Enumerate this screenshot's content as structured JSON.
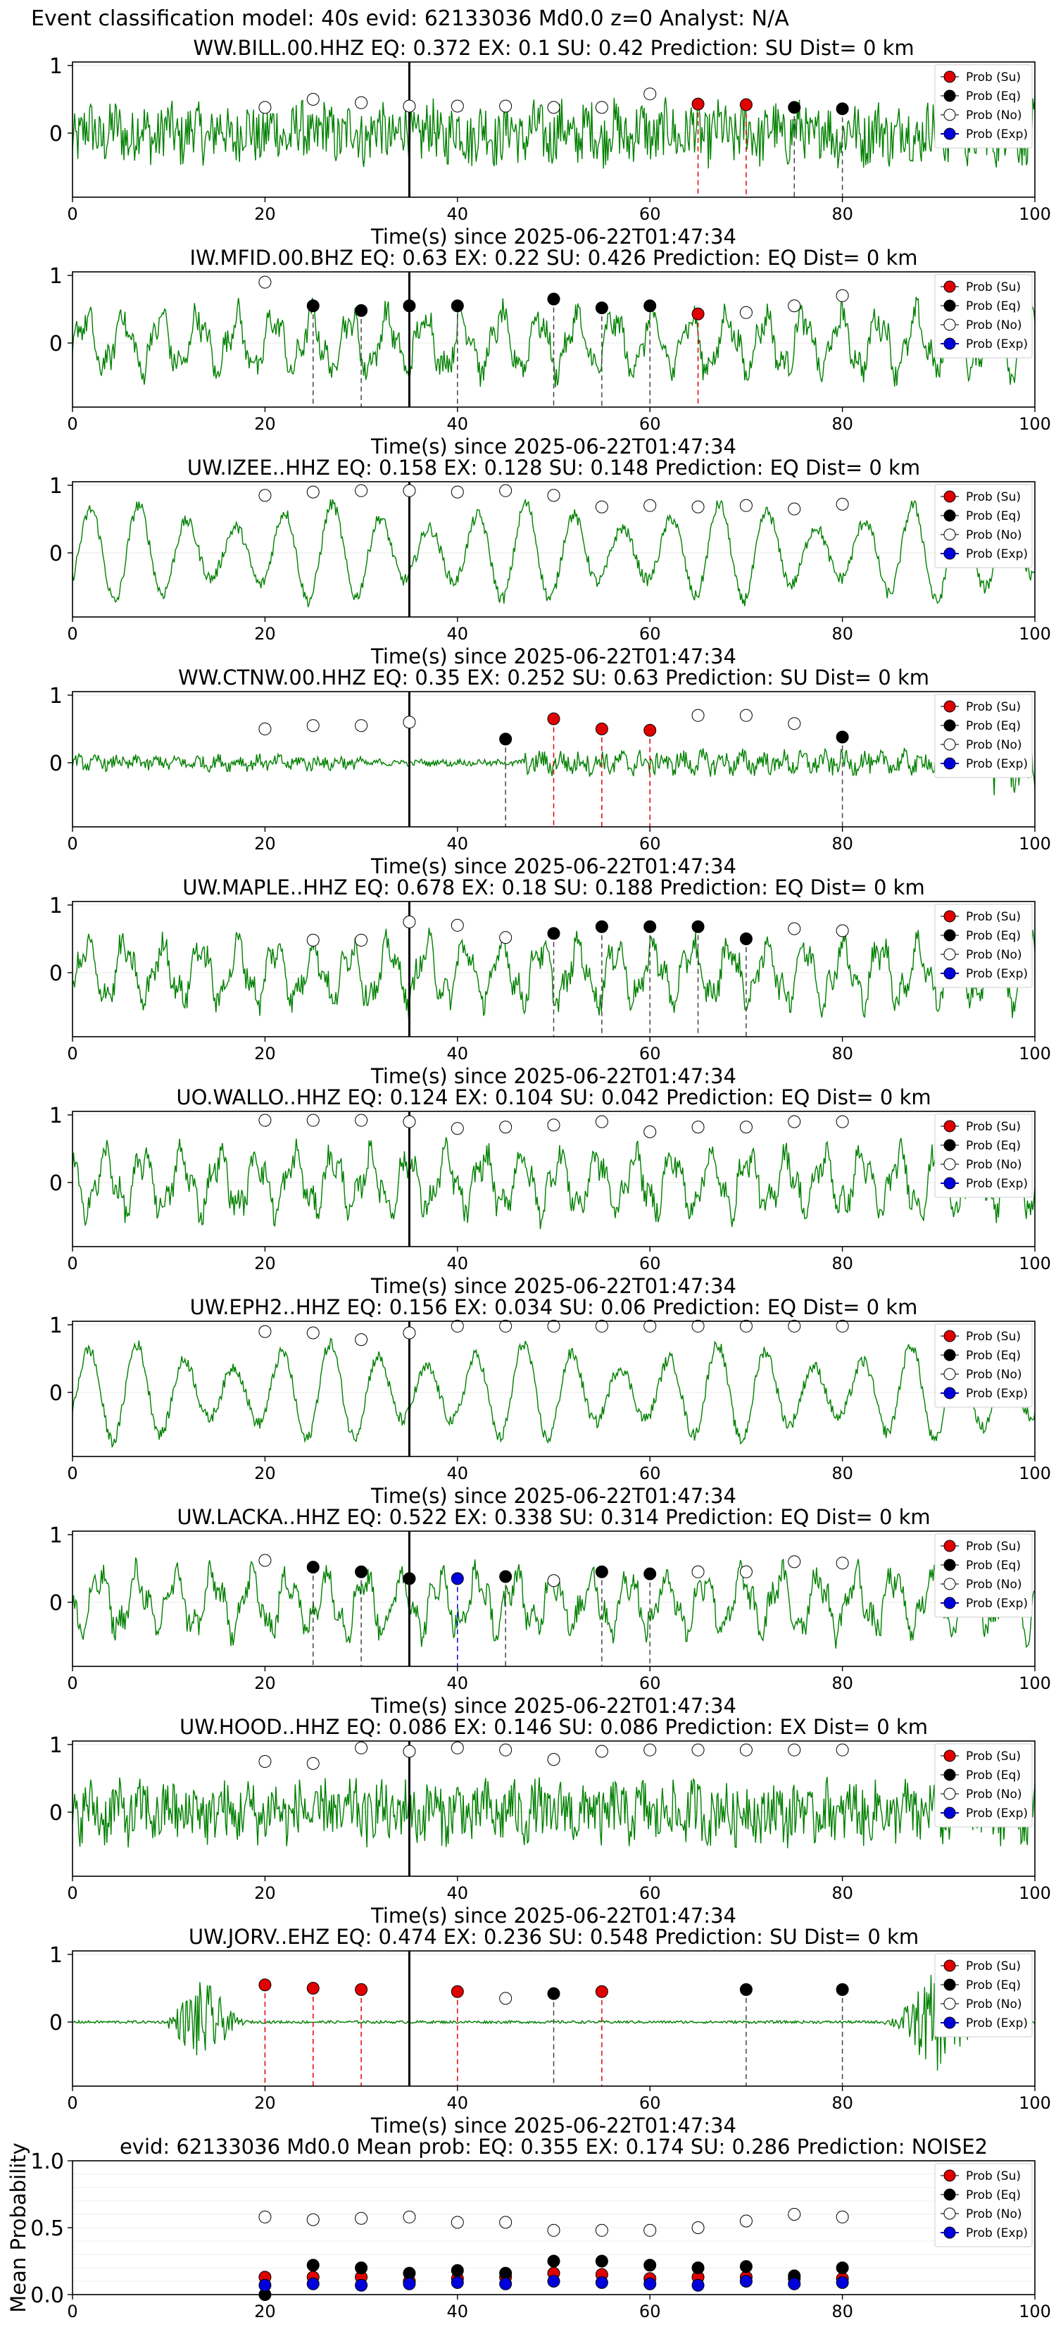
{
  "header": "Event classification model: 40s evid: 62133036 Md0.0 z=0 Analyst: N/A",
  "legend": [
    "Prob (Su)",
    "Prob (Eq)",
    "Prob (No)",
    "Prob (Exp)"
  ],
  "colors": {
    "trace": "#008000",
    "su": "#e00000",
    "eq": "#000000",
    "no": "#ffffff",
    "exp": "#0000dd"
  },
  "chart_data": [
    {
      "type": "line",
      "title": "WW.BILL.00.HHZ   EQ: 0.372  EX: 0.1  SU: 0.42   Prediction: SU    Dist= 0 km",
      "xlabel": "Time(s) since 2025-06-22T01:47:34",
      "xlim": [
        0,
        100
      ],
      "xticks": [
        0,
        20,
        40,
        60,
        80,
        100
      ],
      "yticks": [
        1,
        0
      ],
      "pick": 35,
      "amplitude_style": "noisy",
      "points": [
        {
          "x": 20,
          "y": 0.38,
          "c": "no"
        },
        {
          "x": 25,
          "y": 0.5,
          "c": "no"
        },
        {
          "x": 30,
          "y": 0.45,
          "c": "no"
        },
        {
          "x": 35,
          "y": 0.4,
          "c": "no"
        },
        {
          "x": 40,
          "y": 0.4,
          "c": "no"
        },
        {
          "x": 45,
          "y": 0.4,
          "c": "no"
        },
        {
          "x": 50,
          "y": 0.38,
          "c": "no"
        },
        {
          "x": 55,
          "y": 0.38,
          "c": "no"
        },
        {
          "x": 60,
          "y": 0.58,
          "c": "no"
        },
        {
          "x": 65,
          "y": 0.43,
          "c": "su"
        },
        {
          "x": 70,
          "y": 0.42,
          "c": "su"
        },
        {
          "x": 75,
          "y": 0.38,
          "c": "eq"
        },
        {
          "x": 80,
          "y": 0.36,
          "c": "eq"
        }
      ]
    },
    {
      "type": "line",
      "title": "IW.MFID.00.BHZ   EQ: 0.63  EX: 0.22  SU: 0.426   Prediction: EQ    Dist= 0 km",
      "xlabel": "Time(s) since 2025-06-22T01:47:34",
      "xlim": [
        0,
        100
      ],
      "xticks": [
        0,
        20,
        40,
        60,
        80,
        100
      ],
      "yticks": [
        1,
        0
      ],
      "pick": 35,
      "amplitude_style": "wavy",
      "points": [
        {
          "x": 20,
          "y": 0.9,
          "c": "no"
        },
        {
          "x": 25,
          "y": 0.55,
          "c": "eq"
        },
        {
          "x": 30,
          "y": 0.48,
          "c": "eq"
        },
        {
          "x": 35,
          "y": 0.55,
          "c": "eq"
        },
        {
          "x": 40,
          "y": 0.55,
          "c": "eq"
        },
        {
          "x": 50,
          "y": 0.65,
          "c": "eq"
        },
        {
          "x": 55,
          "y": 0.52,
          "c": "eq"
        },
        {
          "x": 60,
          "y": 0.55,
          "c": "eq"
        },
        {
          "x": 65,
          "y": 0.43,
          "c": "su"
        },
        {
          "x": 70,
          "y": 0.45,
          "c": "no"
        },
        {
          "x": 75,
          "y": 0.55,
          "c": "no"
        },
        {
          "x": 80,
          "y": 0.7,
          "c": "no"
        }
      ]
    },
    {
      "type": "line",
      "title": "UW.IZEE..HHZ   EQ: 0.158  EX: 0.128  SU: 0.148   Prediction: EQ    Dist= 0 km",
      "xlabel": "Time(s) since 2025-06-22T01:47:34",
      "xlim": [
        0,
        100
      ],
      "xticks": [
        0,
        20,
        40,
        60,
        80,
        100
      ],
      "yticks": [
        1,
        0
      ],
      "pick": 35,
      "amplitude_style": "oscillating",
      "points": [
        {
          "x": 20,
          "y": 0.85,
          "c": "no"
        },
        {
          "x": 25,
          "y": 0.9,
          "c": "no"
        },
        {
          "x": 30,
          "y": 0.92,
          "c": "no"
        },
        {
          "x": 35,
          "y": 0.92,
          "c": "no"
        },
        {
          "x": 40,
          "y": 0.9,
          "c": "no"
        },
        {
          "x": 45,
          "y": 0.92,
          "c": "no"
        },
        {
          "x": 50,
          "y": 0.85,
          "c": "no"
        },
        {
          "x": 55,
          "y": 0.68,
          "c": "no"
        },
        {
          "x": 60,
          "y": 0.7,
          "c": "no"
        },
        {
          "x": 65,
          "y": 0.68,
          "c": "no"
        },
        {
          "x": 70,
          "y": 0.7,
          "c": "no"
        },
        {
          "x": 75,
          "y": 0.65,
          "c": "no"
        },
        {
          "x": 80,
          "y": 0.72,
          "c": "no"
        }
      ]
    },
    {
      "type": "line",
      "title": "WW.CTNW.00.HHZ   EQ: 0.35  EX: 0.252  SU: 0.63   Prediction: SU    Dist= 0 km",
      "xlabel": "Time(s) since 2025-06-22T01:47:34",
      "xlim": [
        0,
        100
      ],
      "xticks": [
        0,
        20,
        40,
        60,
        80,
        100
      ],
      "yticks": [
        1,
        0
      ],
      "pick": 35,
      "amplitude_style": "quiet",
      "points": [
        {
          "x": 20,
          "y": 0.5,
          "c": "no"
        },
        {
          "x": 25,
          "y": 0.55,
          "c": "no"
        },
        {
          "x": 30,
          "y": 0.55,
          "c": "no"
        },
        {
          "x": 35,
          "y": 0.6,
          "c": "no"
        },
        {
          "x": 45,
          "y": 0.35,
          "c": "eq"
        },
        {
          "x": 50,
          "y": 0.65,
          "c": "su"
        },
        {
          "x": 55,
          "y": 0.5,
          "c": "su"
        },
        {
          "x": 60,
          "y": 0.48,
          "c": "su"
        },
        {
          "x": 65,
          "y": 0.7,
          "c": "no"
        },
        {
          "x": 70,
          "y": 0.7,
          "c": "no"
        },
        {
          "x": 75,
          "y": 0.58,
          "c": "no"
        },
        {
          "x": 80,
          "y": 0.38,
          "c": "eq"
        }
      ]
    },
    {
      "type": "line",
      "title": "UW.MAPLE..HHZ   EQ: 0.678  EX: 0.18  SU: 0.188   Prediction: EQ    Dist= 0 km",
      "xlabel": "Time(s) since 2025-06-22T01:47:34",
      "xlim": [
        0,
        100
      ],
      "xticks": [
        0,
        20,
        40,
        60,
        80,
        100
      ],
      "yticks": [
        1,
        0
      ],
      "pick": 35,
      "amplitude_style": "wavy",
      "points": [
        {
          "x": 25,
          "y": 0.48,
          "c": "no"
        },
        {
          "x": 30,
          "y": 0.48,
          "c": "no"
        },
        {
          "x": 35,
          "y": 0.75,
          "c": "no"
        },
        {
          "x": 40,
          "y": 0.7,
          "c": "no"
        },
        {
          "x": 45,
          "y": 0.52,
          "c": "no"
        },
        {
          "x": 50,
          "y": 0.58,
          "c": "eq"
        },
        {
          "x": 55,
          "y": 0.68,
          "c": "eq"
        },
        {
          "x": 60,
          "y": 0.68,
          "c": "eq"
        },
        {
          "x": 65,
          "y": 0.68,
          "c": "eq"
        },
        {
          "x": 70,
          "y": 0.5,
          "c": "eq"
        },
        {
          "x": 75,
          "y": 0.65,
          "c": "no"
        },
        {
          "x": 80,
          "y": 0.62,
          "c": "no"
        }
      ]
    },
    {
      "type": "line",
      "title": "UO.WALLO..HHZ   EQ: 0.124  EX: 0.104  SU: 0.042   Prediction: EQ    Dist= 0 km",
      "xlabel": "Time(s) since 2025-06-22T01:47:34",
      "xlim": [
        0,
        100
      ],
      "xticks": [
        0,
        20,
        40,
        60,
        80,
        100
      ],
      "yticks": [
        1,
        0
      ],
      "pick": 35,
      "amplitude_style": "wavy",
      "points": [
        {
          "x": 20,
          "y": 0.92,
          "c": "no"
        },
        {
          "x": 25,
          "y": 0.92,
          "c": "no"
        },
        {
          "x": 30,
          "y": 0.92,
          "c": "no"
        },
        {
          "x": 35,
          "y": 0.9,
          "c": "no"
        },
        {
          "x": 40,
          "y": 0.8,
          "c": "no"
        },
        {
          "x": 45,
          "y": 0.82,
          "c": "no"
        },
        {
          "x": 50,
          "y": 0.85,
          "c": "no"
        },
        {
          "x": 55,
          "y": 0.9,
          "c": "no"
        },
        {
          "x": 60,
          "y": 0.75,
          "c": "no"
        },
        {
          "x": 65,
          "y": 0.82,
          "c": "no"
        },
        {
          "x": 70,
          "y": 0.82,
          "c": "no"
        },
        {
          "x": 75,
          "y": 0.9,
          "c": "no"
        },
        {
          "x": 80,
          "y": 0.9,
          "c": "no"
        }
      ]
    },
    {
      "type": "line",
      "title": "UW.EPH2..HHZ   EQ: 0.156  EX: 0.034  SU: 0.06   Prediction: EQ    Dist= 0 km",
      "xlabel": "Time(s) since 2025-06-22T01:47:34",
      "xlim": [
        0,
        100
      ],
      "xticks": [
        0,
        20,
        40,
        60,
        80,
        100
      ],
      "yticks": [
        1,
        0
      ],
      "pick": 35,
      "amplitude_style": "oscillating",
      "points": [
        {
          "x": 20,
          "y": 0.9,
          "c": "no"
        },
        {
          "x": 25,
          "y": 0.88,
          "c": "no"
        },
        {
          "x": 30,
          "y": 0.78,
          "c": "no"
        },
        {
          "x": 35,
          "y": 0.88,
          "c": "no"
        },
        {
          "x": 40,
          "y": 0.98,
          "c": "no"
        },
        {
          "x": 45,
          "y": 0.98,
          "c": "no"
        },
        {
          "x": 50,
          "y": 0.98,
          "c": "no"
        },
        {
          "x": 55,
          "y": 0.98,
          "c": "no"
        },
        {
          "x": 60,
          "y": 0.98,
          "c": "no"
        },
        {
          "x": 65,
          "y": 0.98,
          "c": "no"
        },
        {
          "x": 70,
          "y": 0.98,
          "c": "no"
        },
        {
          "x": 75,
          "y": 0.98,
          "c": "no"
        },
        {
          "x": 80,
          "y": 0.98,
          "c": "no"
        }
      ]
    },
    {
      "type": "line",
      "title": "UW.LACKA..HHZ   EQ: 0.522  EX: 0.338  SU: 0.314   Prediction: EQ    Dist= 0 km",
      "xlabel": "Time(s) since 2025-06-22T01:47:34",
      "xlim": [
        0,
        100
      ],
      "xticks": [
        0,
        20,
        40,
        60,
        80,
        100
      ],
      "yticks": [
        1,
        0
      ],
      "pick": 35,
      "amplitude_style": "wavy",
      "points": [
        {
          "x": 20,
          "y": 0.62,
          "c": "no"
        },
        {
          "x": 25,
          "y": 0.52,
          "c": "eq"
        },
        {
          "x": 30,
          "y": 0.45,
          "c": "eq"
        },
        {
          "x": 35,
          "y": 0.35,
          "c": "eq"
        },
        {
          "x": 40,
          "y": 0.35,
          "c": "exp"
        },
        {
          "x": 45,
          "y": 0.38,
          "c": "eq"
        },
        {
          "x": 50,
          "y": 0.32,
          "c": "no"
        },
        {
          "x": 55,
          "y": 0.45,
          "c": "eq"
        },
        {
          "x": 60,
          "y": 0.42,
          "c": "eq"
        },
        {
          "x": 65,
          "y": 0.45,
          "c": "no"
        },
        {
          "x": 70,
          "y": 0.45,
          "c": "no"
        },
        {
          "x": 75,
          "y": 0.6,
          "c": "no"
        },
        {
          "x": 80,
          "y": 0.58,
          "c": "no"
        }
      ]
    },
    {
      "type": "line",
      "title": "UW.HOOD..HHZ   EQ: 0.086  EX: 0.146  SU: 0.086   Prediction: EX    Dist= 0 km",
      "xlabel": "Time(s) since 2025-06-22T01:47:34",
      "xlim": [
        0,
        100
      ],
      "xticks": [
        0,
        20,
        40,
        60,
        80,
        100
      ],
      "yticks": [
        1,
        0
      ],
      "pick": 35,
      "amplitude_style": "noisy",
      "points": [
        {
          "x": 20,
          "y": 0.75,
          "c": "no"
        },
        {
          "x": 25,
          "y": 0.72,
          "c": "no"
        },
        {
          "x": 30,
          "y": 0.95,
          "c": "no"
        },
        {
          "x": 35,
          "y": 0.9,
          "c": "no"
        },
        {
          "x": 40,
          "y": 0.95,
          "c": "no"
        },
        {
          "x": 45,
          "y": 0.92,
          "c": "no"
        },
        {
          "x": 50,
          "y": 0.78,
          "c": "no"
        },
        {
          "x": 55,
          "y": 0.9,
          "c": "no"
        },
        {
          "x": 60,
          "y": 0.92,
          "c": "no"
        },
        {
          "x": 65,
          "y": 0.92,
          "c": "no"
        },
        {
          "x": 70,
          "y": 0.92,
          "c": "no"
        },
        {
          "x": 75,
          "y": 0.92,
          "c": "no"
        },
        {
          "x": 80,
          "y": 0.92,
          "c": "no"
        }
      ]
    },
    {
      "type": "line",
      "title": "UW.JORV..EHZ   EQ: 0.474  EX: 0.236  SU: 0.548   Prediction: SU    Dist= 0 km",
      "xlabel": "Time(s) since 2025-06-22T01:47:34",
      "xlim": [
        0,
        100
      ],
      "xticks": [
        0,
        20,
        40,
        60,
        80,
        100
      ],
      "yticks": [
        1,
        0
      ],
      "pick": 35,
      "amplitude_style": "bursts",
      "points": [
        {
          "x": 20,
          "y": 0.55,
          "c": "su"
        },
        {
          "x": 25,
          "y": 0.5,
          "c": "su"
        },
        {
          "x": 30,
          "y": 0.48,
          "c": "su"
        },
        {
          "x": 40,
          "y": 0.45,
          "c": "su"
        },
        {
          "x": 45,
          "y": 0.35,
          "c": "no"
        },
        {
          "x": 50,
          "y": 0.42,
          "c": "eq"
        },
        {
          "x": 55,
          "y": 0.45,
          "c": "su"
        },
        {
          "x": 70,
          "y": 0.48,
          "c": "eq"
        },
        {
          "x": 80,
          "y": 0.48,
          "c": "eq"
        }
      ]
    },
    {
      "type": "scatter",
      "title": "evid: 62133036  Md0.0   Mean prob:   EQ: 0.355  EX: 0.174  SU: 0.286   Prediction: NOISE2",
      "ylabel": "Mean Probability",
      "xlim": [
        0,
        100
      ],
      "ylim": [
        0,
        1
      ],
      "xticks": [
        0,
        20,
        40,
        60,
        80,
        100
      ],
      "yticks": [
        "1.0",
        "0.5",
        "0.0"
      ],
      "x": [
        20,
        25,
        30,
        35,
        40,
        45,
        50,
        55,
        60,
        65,
        70,
        75,
        80
      ],
      "series": [
        {
          "name": "Prob (Su)",
          "key": "su",
          "values": [
            0.13,
            0.13,
            0.13,
            0.1,
            0.12,
            0.13,
            0.16,
            0.15,
            0.12,
            0.13,
            0.13,
            0.12,
            0.12
          ]
        },
        {
          "name": "Prob (Eq)",
          "key": "eq",
          "values": [
            0.0,
            0.22,
            0.2,
            0.16,
            0.18,
            0.16,
            0.25,
            0.25,
            0.22,
            0.2,
            0.21,
            0.14,
            0.2
          ]
        },
        {
          "name": "Prob (No)",
          "key": "no",
          "values": [
            0.58,
            0.56,
            0.57,
            0.58,
            0.54,
            0.54,
            0.48,
            0.48,
            0.48,
            0.5,
            0.55,
            0.6,
            0.58
          ]
        },
        {
          "name": "Prob (Exp)",
          "key": "exp",
          "values": [
            0.07,
            0.08,
            0.07,
            0.08,
            0.09,
            0.08,
            0.1,
            0.09,
            0.08,
            0.07,
            0.1,
            0.08,
            0.09
          ]
        }
      ]
    }
  ]
}
